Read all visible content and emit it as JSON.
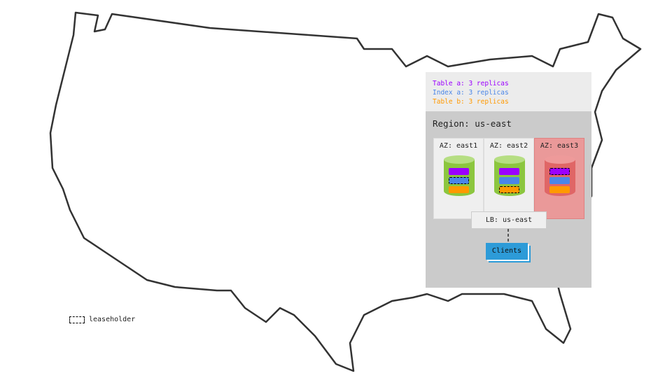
{
  "legend": {
    "table_a": "Table a: 3 replicas",
    "index_a": "Index a: 3 replicas",
    "table_b": "Table b: 3 replicas"
  },
  "colors": {
    "table_a": "#9b00ff",
    "index_a": "#4a86e8",
    "table_b": "#ff9900",
    "healthy": "#8cc63f",
    "failed": "#e06666"
  },
  "region": "Region: us-east",
  "azs": [
    {
      "label": "AZ: east1",
      "status": "healthy",
      "leaseholder": "index_a"
    },
    {
      "label": "AZ: east2",
      "status": "healthy",
      "leaseholder": "table_b"
    },
    {
      "label": "AZ: east3",
      "status": "failed",
      "leaseholder": "table_a"
    }
  ],
  "lb": "LB: us-east",
  "clients": "Clients",
  "key": {
    "leaseholder": "leaseholder"
  }
}
